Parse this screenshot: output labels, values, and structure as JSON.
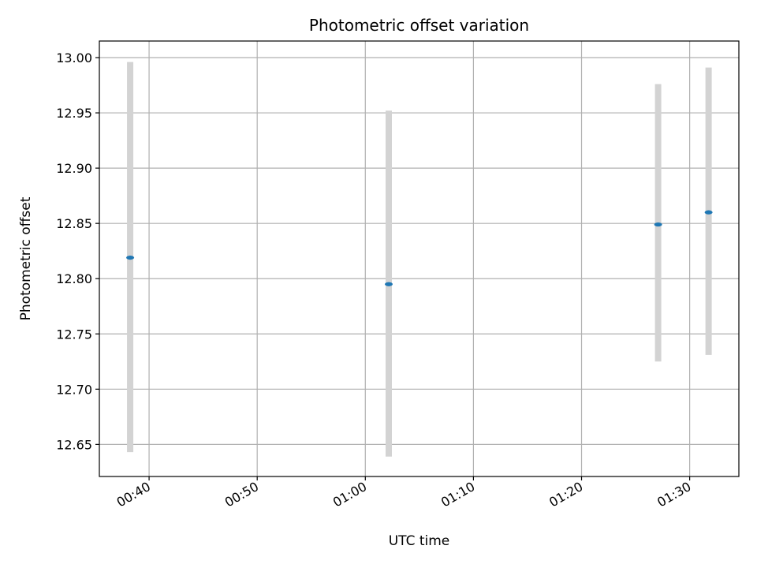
{
  "chart_data": {
    "type": "scatter",
    "title": "Photometric offset variation",
    "xlabel": "UTC time",
    "ylabel": "Photometric offset",
    "x_ticks": [
      "00:40",
      "00:50",
      "01:00",
      "01:10",
      "01:20",
      "01:30"
    ],
    "y_ticks": [
      "12.65",
      "12.70",
      "12.75",
      "12.80",
      "12.85",
      "12.90",
      "12.95",
      "13.00"
    ],
    "xlim": [
      "00:35:24",
      "01:34:33"
    ],
    "ylim": [
      12.621,
      13.015
    ],
    "grid": true,
    "series": [
      {
        "points": [
          {
            "x": "00:38:15",
            "y": 12.819,
            "ylow": 12.643,
            "yhigh": 12.996
          },
          {
            "x": "01:02:10",
            "y": 12.795,
            "ylow": 12.639,
            "yhigh": 12.952
          },
          {
            "x": "01:27:05",
            "y": 12.849,
            "ylow": 12.725,
            "yhigh": 12.976
          },
          {
            "x": "01:31:45",
            "y": 12.86,
            "ylow": 12.731,
            "yhigh": 12.991
          }
        ]
      }
    ],
    "colors": {
      "marker": "#1f77b4",
      "errorbar": "#d3d3d3",
      "grid": "#b0b0b0",
      "axes": "#000000"
    }
  }
}
